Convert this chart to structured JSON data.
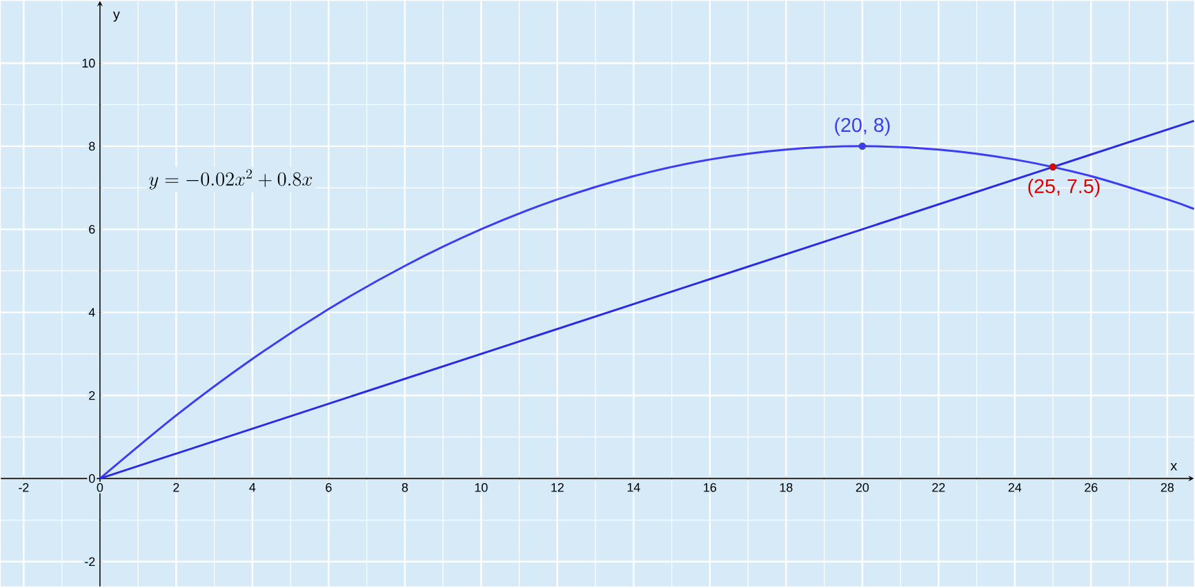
{
  "chart_data": {
    "type": "line",
    "xlabel": "x",
    "ylabel": "y",
    "xlim": [
      -2.6,
      28.7
    ],
    "ylim": [
      -2.6,
      11.5
    ],
    "xticks": [
      -2,
      0,
      2,
      4,
      6,
      8,
      10,
      12,
      14,
      16,
      18,
      20,
      22,
      24,
      26,
      28
    ],
    "yticks": [
      -2,
      0,
      2,
      4,
      6,
      8,
      10
    ],
    "grid": true,
    "series": [
      {
        "color": "#3c3cf5",
        "x": [
          0,
          2,
          4,
          6,
          8,
          10,
          12,
          14,
          16,
          18,
          20,
          22,
          24,
          26,
          28,
          28.7
        ],
        "values": [
          0,
          1.52,
          2.88,
          4.08,
          5.12,
          6,
          6.72,
          7.28,
          7.68,
          7.92,
          8,
          7.92,
          7.68,
          7.28,
          6.72,
          6.49
        ]
      },
      {
        "color": "#2a2ae6",
        "x": [
          0,
          28.7
        ],
        "values": [
          0,
          8.61
        ]
      },
      {
        "type": "scatter",
        "marker": "circle",
        "color": "#3c3cf5",
        "x": [
          20
        ],
        "values": [
          8
        ]
      },
      {
        "type": "scatter",
        "marker": "circle",
        "color": "#e00000",
        "x": [
          25
        ],
        "values": [
          7.5
        ]
      }
    ],
    "annotations": [
      "y=-0.02x^{2}+0.8x",
      {
        "text": "(20, 8)",
        "x": 20,
        "y": 8
      },
      {
        "text": "(25, 7.5)",
        "x": 25,
        "y": 7.5
      }
    ]
  }
}
